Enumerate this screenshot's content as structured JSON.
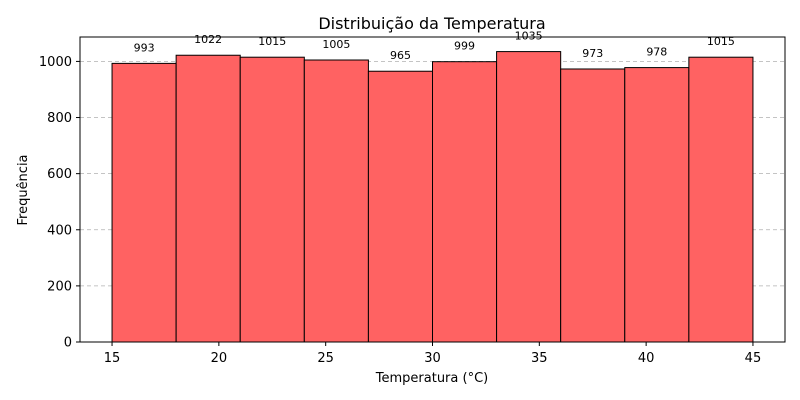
{
  "chart_data": {
    "type": "bar",
    "title": "Distribuição da Temperatura",
    "xlabel": "Temperatura (°C)",
    "ylabel": "Frequência",
    "bin_edges": [
      15,
      18,
      21,
      24,
      27,
      30,
      33,
      36,
      39,
      42,
      45
    ],
    "values": [
      993,
      1022,
      1015,
      1005,
      965,
      999,
      1035,
      973,
      978,
      1015
    ],
    "data_labels": [
      "993",
      "1022",
      "1015",
      "1005",
      "965",
      "999",
      "1035",
      "973",
      "978",
      "1015"
    ],
    "xlim": [
      13.5,
      46.5
    ],
    "ylim": [
      0,
      1087
    ],
    "xticks": [
      15,
      20,
      25,
      30,
      35,
      40,
      45
    ],
    "xtick_labels": [
      "15",
      "20",
      "25",
      "30",
      "35",
      "40",
      "45"
    ],
    "yticks": [
      0,
      200,
      400,
      600,
      800,
      1000
    ],
    "ytick_labels": [
      "0",
      "200",
      "400",
      "600",
      "800",
      "1000"
    ],
    "grid": "y-dashed",
    "bar_color": "#ff6262",
    "edge_color": "#000000"
  }
}
